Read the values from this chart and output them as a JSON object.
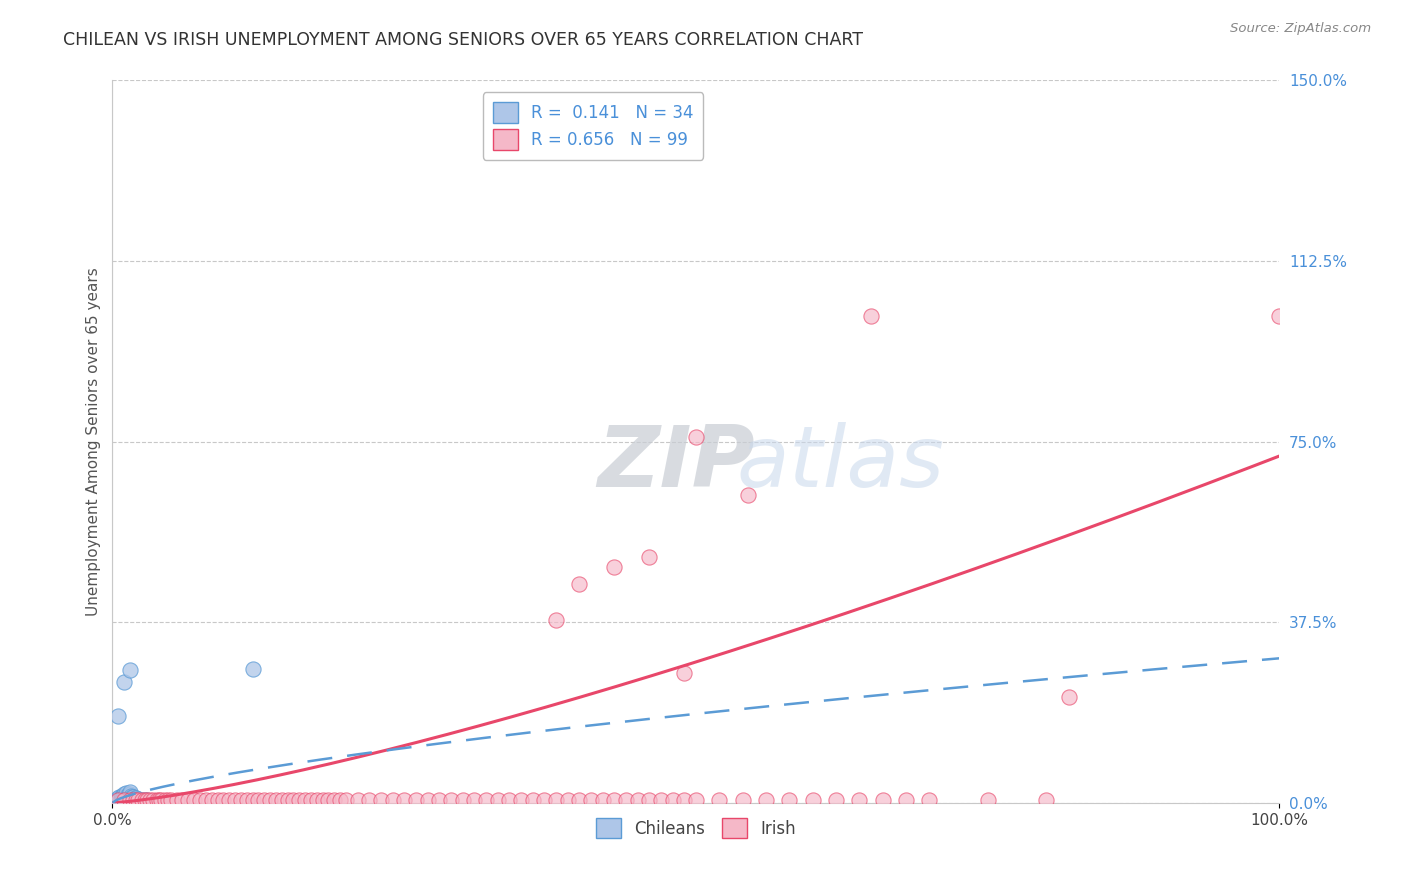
{
  "title": "CHILEAN VS IRISH UNEMPLOYMENT AMONG SENIORS OVER 65 YEARS CORRELATION CHART",
  "source": "Source: ZipAtlas.com",
  "ylabel": "Unemployment Among Seniors over 65 years",
  "watermark_zip": "ZIP",
  "watermark_atlas": "atlas",
  "xlim": [
    0.0,
    1.0
  ],
  "ylim": [
    0.0,
    1.5
  ],
  "ytick_right_labels": [
    "0.0%",
    "37.5%",
    "75.0%",
    "112.5%",
    "150.0%"
  ],
  "ytick_right_values": [
    0.0,
    0.375,
    0.75,
    1.125,
    1.5
  ],
  "chilean_R": 0.141,
  "chilean_N": 34,
  "irish_R": 0.656,
  "irish_N": 99,
  "chilean_color": "#aec6e8",
  "irish_color": "#f5b8c8",
  "chilean_edge_color": "#5b9bd5",
  "irish_edge_color": "#e8476a",
  "chilean_line_color": "#5b9bd5",
  "irish_line_color": "#e8476a",
  "background_color": "#ffffff",
  "grid_color": "#c8c8c8",
  "title_color": "#333333",
  "right_tick_color": "#4a90d9",
  "legend_edge_color": "#bbbbbb",
  "chilean_x": [
    0.004,
    0.005,
    0.005,
    0.006,
    0.006,
    0.007,
    0.008,
    0.008,
    0.009,
    0.009,
    0.01,
    0.01,
    0.011,
    0.012,
    0.012,
    0.013,
    0.014,
    0.015,
    0.015,
    0.016,
    0.017,
    0.018,
    0.019,
    0.02,
    0.022,
    0.025,
    0.028,
    0.03,
    0.035,
    0.04,
    0.01,
    0.015,
    0.12,
    0.005
  ],
  "chilean_y": [
    0.005,
    0.005,
    0.01,
    0.008,
    0.012,
    0.01,
    0.012,
    0.015,
    0.01,
    0.014,
    0.012,
    0.018,
    0.015,
    0.014,
    0.02,
    0.016,
    0.014,
    0.018,
    0.022,
    0.015,
    0.012,
    0.012,
    0.01,
    0.01,
    0.008,
    0.006,
    0.005,
    0.005,
    0.004,
    0.004,
    0.25,
    0.275,
    0.278,
    0.18
  ],
  "irish_x": [
    0.005,
    0.01,
    0.015,
    0.018,
    0.02,
    0.022,
    0.025,
    0.028,
    0.03,
    0.032,
    0.035,
    0.038,
    0.04,
    0.042,
    0.045,
    0.048,
    0.05,
    0.055,
    0.06,
    0.065,
    0.07,
    0.075,
    0.08,
    0.085,
    0.09,
    0.095,
    0.1,
    0.105,
    0.11,
    0.115,
    0.12,
    0.125,
    0.13,
    0.135,
    0.14,
    0.145,
    0.15,
    0.155,
    0.16,
    0.165,
    0.17,
    0.175,
    0.18,
    0.185,
    0.19,
    0.195,
    0.2,
    0.21,
    0.22,
    0.23,
    0.24,
    0.25,
    0.26,
    0.27,
    0.28,
    0.29,
    0.3,
    0.31,
    0.32,
    0.33,
    0.34,
    0.35,
    0.36,
    0.37,
    0.38,
    0.39,
    0.4,
    0.41,
    0.42,
    0.43,
    0.44,
    0.45,
    0.46,
    0.47,
    0.48,
    0.49,
    0.5,
    0.52,
    0.54,
    0.56,
    0.58,
    0.6,
    0.62,
    0.64,
    0.66,
    0.68,
    0.7,
    0.75,
    0.8,
    0.82,
    0.38,
    0.4,
    0.43,
    0.46,
    0.49,
    0.65,
    1.0,
    0.5,
    0.545
  ],
  "irish_y": [
    0.005,
    0.005,
    0.005,
    0.005,
    0.005,
    0.005,
    0.005,
    0.005,
    0.005,
    0.005,
    0.005,
    0.005,
    0.005,
    0.005,
    0.005,
    0.005,
    0.005,
    0.005,
    0.005,
    0.005,
    0.005,
    0.005,
    0.005,
    0.005,
    0.005,
    0.005,
    0.005,
    0.005,
    0.005,
    0.005,
    0.005,
    0.005,
    0.005,
    0.005,
    0.005,
    0.005,
    0.005,
    0.005,
    0.005,
    0.005,
    0.005,
    0.005,
    0.005,
    0.005,
    0.005,
    0.005,
    0.005,
    0.005,
    0.005,
    0.005,
    0.005,
    0.005,
    0.005,
    0.005,
    0.005,
    0.005,
    0.005,
    0.005,
    0.005,
    0.005,
    0.005,
    0.005,
    0.005,
    0.005,
    0.005,
    0.005,
    0.005,
    0.005,
    0.005,
    0.005,
    0.005,
    0.005,
    0.005,
    0.005,
    0.005,
    0.005,
    0.005,
    0.005,
    0.005,
    0.005,
    0.005,
    0.005,
    0.005,
    0.005,
    0.005,
    0.005,
    0.005,
    0.005,
    0.005,
    0.22,
    0.38,
    0.455,
    0.49,
    0.51,
    0.27,
    1.01,
    1.01,
    0.76,
    0.64
  ]
}
